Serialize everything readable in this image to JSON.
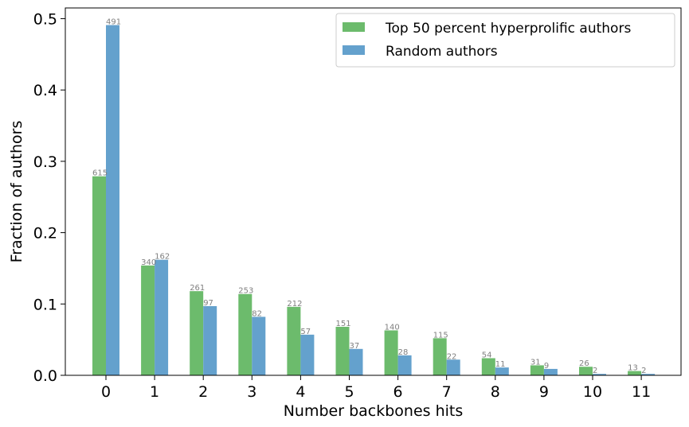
{
  "chart_data": {
    "type": "bar",
    "title": "",
    "xlabel": "Number backbones hits",
    "ylabel": "Fraction of authors",
    "categories": [
      "0",
      "1",
      "2",
      "3",
      "4",
      "5",
      "6",
      "7",
      "8",
      "9",
      "10",
      "11"
    ],
    "ylim": [
      0,
      0.515
    ],
    "yticks": [
      "0.0",
      "0.1",
      "0.2",
      "0.3",
      "0.4",
      "0.5"
    ],
    "grid": false,
    "legend": "top-right",
    "series": [
      {
        "name": "Top 50 percent hyperprolific authors",
        "color": "#6cbb6c",
        "values": [
          0.279,
          0.154,
          0.118,
          0.114,
          0.096,
          0.068,
          0.063,
          0.052,
          0.024,
          0.014,
          0.012,
          0.006
        ],
        "labels": [
          "615",
          "340",
          "261",
          "253",
          "212",
          "151",
          "140",
          "115",
          "54",
          "31",
          "26",
          "13"
        ]
      },
      {
        "name": "Random authors",
        "color": "#64a1cd",
        "values": [
          0.491,
          0.162,
          0.097,
          0.082,
          0.057,
          0.037,
          0.028,
          0.022,
          0.011,
          0.009,
          0.002,
          0.002
        ],
        "labels": [
          "491",
          "162",
          "97",
          "82",
          "57",
          "37",
          "28",
          "22",
          "11",
          "9",
          "2",
          "2"
        ]
      }
    ]
  }
}
